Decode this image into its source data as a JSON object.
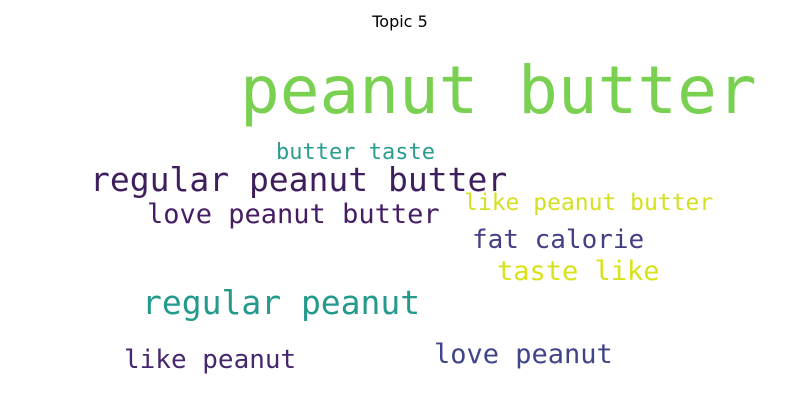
{
  "title": "Topic 5",
  "words": [
    {
      "text": "peanut butter",
      "color": "#7ad151",
      "rank": 1
    },
    {
      "text": "butter taste",
      "color": "#2a9d8f",
      "rank": 2
    },
    {
      "text": "regular peanut butter",
      "color": "#3e1f5e",
      "rank": 3
    },
    {
      "text": "like peanut butter",
      "color": "#d4e021",
      "rank": 4
    },
    {
      "text": "love peanut butter",
      "color": "#451d64",
      "rank": 5
    },
    {
      "text": "fat calorie",
      "color": "#433f87",
      "rank": 6
    },
    {
      "text": "taste like",
      "color": "#d8e219",
      "rank": 7
    },
    {
      "text": "regular peanut",
      "color": "#239a8b",
      "rank": 8
    },
    {
      "text": "love peanut",
      "color": "#41448a",
      "rank": 9
    },
    {
      "text": "like peanut",
      "color": "#46286f",
      "rank": 10
    }
  ]
}
